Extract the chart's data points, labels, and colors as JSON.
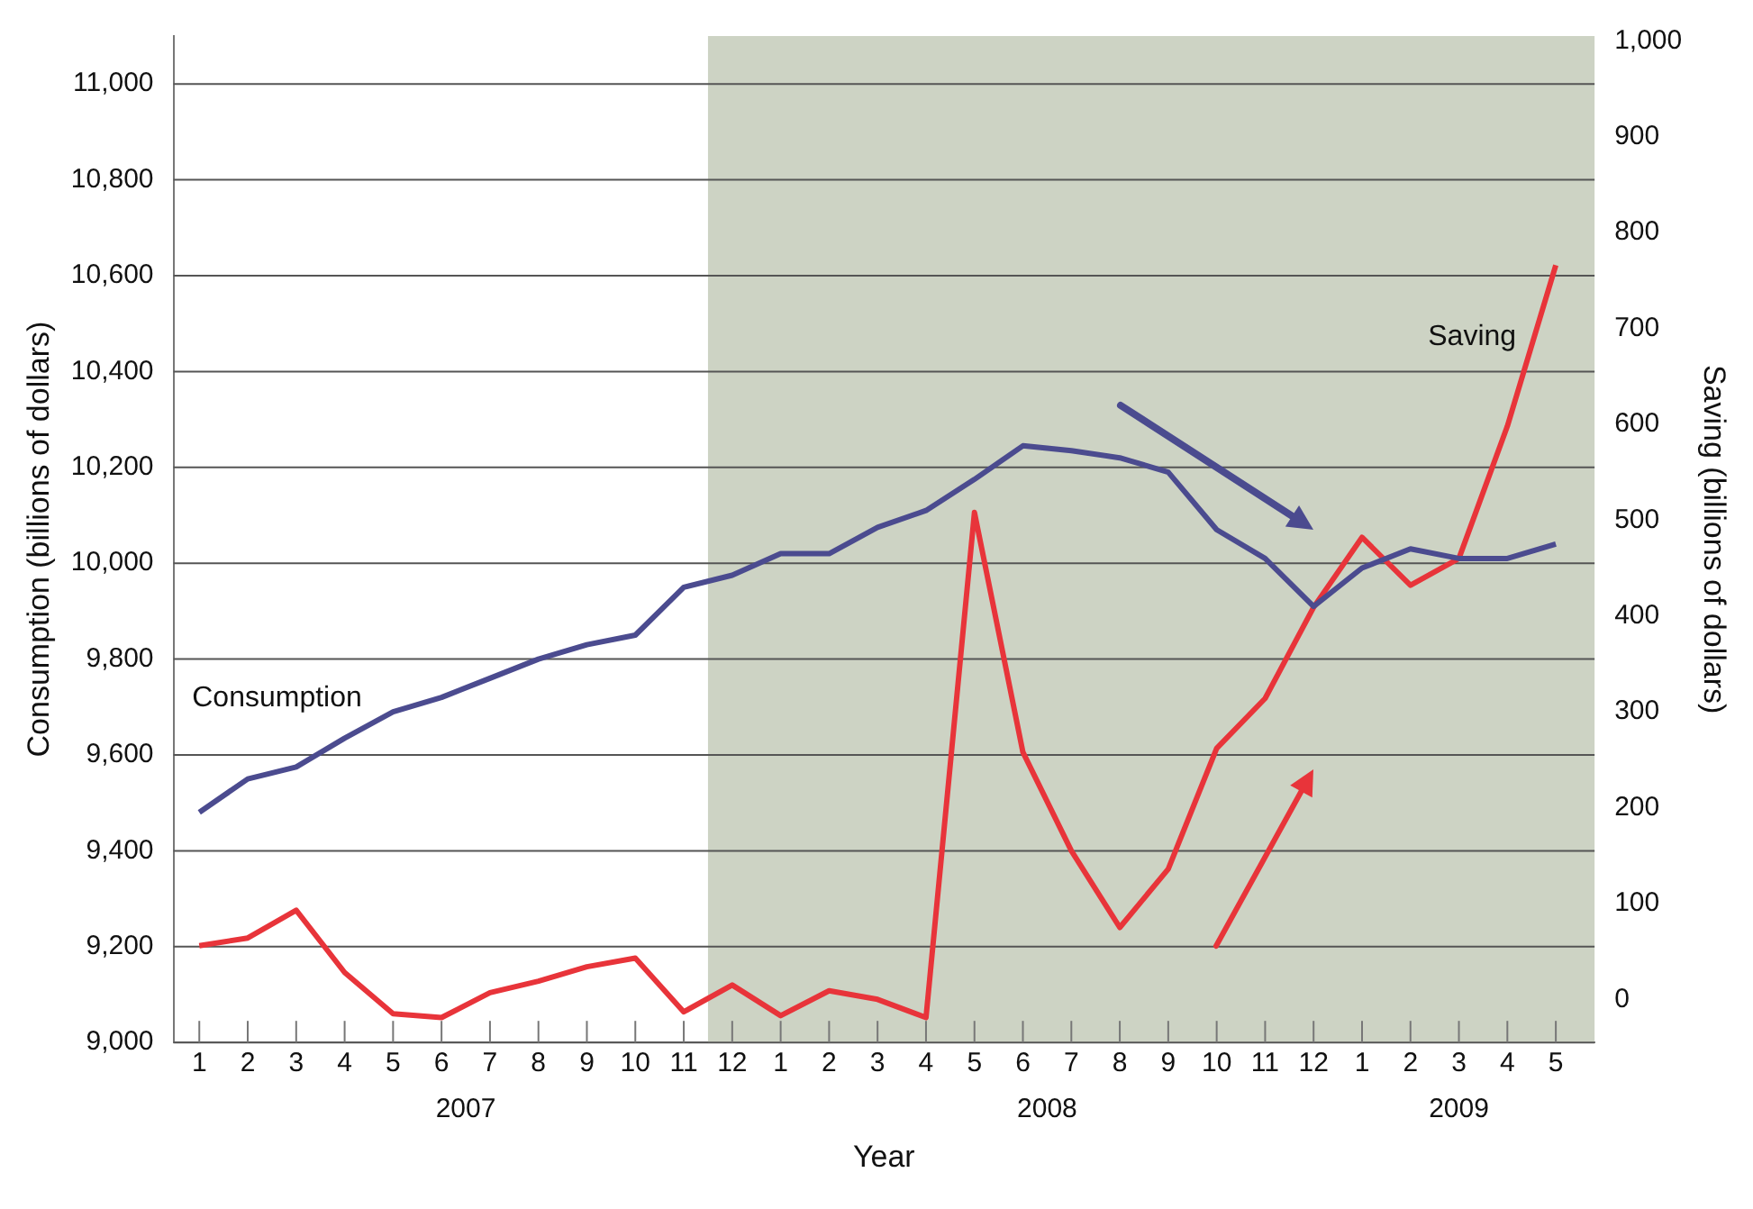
{
  "chart_data": {
    "type": "line",
    "xlabel": "Year",
    "ylabel": "Consumption (billions of dollars)",
    "y2label": "Saving (billions of dollars)",
    "x": [
      "2007-01",
      "2007-02",
      "2007-03",
      "2007-04",
      "2007-05",
      "2007-06",
      "2007-07",
      "2007-08",
      "2007-09",
      "2007-10",
      "2007-11",
      "2007-12",
      "2008-01",
      "2008-02",
      "2008-03",
      "2008-04",
      "2008-05",
      "2008-06",
      "2008-07",
      "2008-08",
      "2008-09",
      "2008-10",
      "2008-11",
      "2008-12",
      "2009-01",
      "2009-02",
      "2009-03",
      "2009-04",
      "2009-05"
    ],
    "series": [
      {
        "name": "Consumption",
        "color": "#4b4b8f",
        "values": [
          9480,
          9550,
          9575,
          9635,
          9690,
          9720,
          9760,
          9800,
          9830,
          9850,
          9950,
          9975,
          10020,
          10020,
          10075,
          10110,
          10175,
          10245,
          10235,
          10220,
          10190,
          10070,
          10010,
          9910,
          9990,
          10030,
          10010,
          10010,
          10040
        ]
      },
      {
        "name": "Saving",
        "color": "#e8343a",
        "axis": "y2",
        "values": [
          56,
          64,
          93,
          28,
          -15,
          -19,
          7,
          19,
          34,
          43,
          -13,
          15,
          -17,
          9,
          0,
          -19,
          508,
          258,
          155,
          75,
          136,
          262,
          314,
          409,
          482,
          432,
          460,
          598,
          766
        ]
      }
    ],
    "xlim": [
      "2006-12-15",
      "2009-05-25"
    ],
    "xticks": [
      {
        "value": "2007-01",
        "label": "1"
      },
      {
        "value": "2007-02",
        "label": "2"
      },
      {
        "value": "2007-03",
        "label": "3"
      },
      {
        "value": "2007-04",
        "label": "4"
      },
      {
        "value": "2007-05",
        "label": "5"
      },
      {
        "value": "2007-06",
        "label": "6"
      },
      {
        "value": "2007-07",
        "label": "7"
      },
      {
        "value": "2007-08",
        "label": "8"
      },
      {
        "value": "2007-09",
        "label": "9"
      },
      {
        "value": "2007-10",
        "label": "10"
      },
      {
        "value": "2007-11",
        "label": "11"
      },
      {
        "value": "2007-12",
        "label": "12"
      },
      {
        "value": "2008-01",
        "label": "1"
      },
      {
        "value": "2008-02",
        "label": "2"
      },
      {
        "value": "2008-03",
        "label": "3"
      },
      {
        "value": "2008-04",
        "label": "4"
      },
      {
        "value": "2008-05",
        "label": "5"
      },
      {
        "value": "2008-06",
        "label": "6"
      },
      {
        "value": "2008-07",
        "label": "7"
      },
      {
        "value": "2008-08",
        "label": "8"
      },
      {
        "value": "2008-09",
        "label": "9"
      },
      {
        "value": "2008-10",
        "label": "10"
      },
      {
        "value": "2008-11",
        "label": "11"
      },
      {
        "value": "2008-12",
        "label": "12"
      },
      {
        "value": "2009-01",
        "label": "1"
      },
      {
        "value": "2009-02",
        "label": "2"
      },
      {
        "value": "2009-03",
        "label": "3"
      },
      {
        "value": "2009-04",
        "label": "4"
      },
      {
        "value": "2009-05",
        "label": "5"
      }
    ],
    "ylim": [
      9000,
      11100
    ],
    "yticks": [
      {
        "value": 9000,
        "label": "9,000"
      },
      {
        "value": 9200,
        "label": "9,200"
      },
      {
        "value": 9400,
        "label": "9,400"
      },
      {
        "value": 9600,
        "label": "9,600"
      },
      {
        "value": 9800,
        "label": "9,800"
      },
      {
        "value": 10000,
        "label": "10,000"
      },
      {
        "value": 10200,
        "label": "10,200"
      },
      {
        "value": 10400,
        "label": "10,400"
      },
      {
        "value": 10600,
        "label": "10,600"
      },
      {
        "value": 10800,
        "label": "10,800"
      },
      {
        "value": 11000,
        "label": "11,000"
      }
    ],
    "y2lim": [
      -45,
      1005
    ],
    "y2ticks": [
      0,
      100,
      200,
      300,
      400,
      500,
      600,
      700,
      800,
      900,
      {
        "value": 1000,
        "label": "1,000"
      }
    ],
    "bands": [
      {
        "axis": "x",
        "from": "2007-11-16",
        "to": "2009-05-25",
        "color": "#cdd3c4"
      }
    ],
    "annotations": [
      "2007",
      "2008",
      "2009"
    ],
    "grid": "y",
    "legend": false,
    "marker": "none",
    "line_style": "solid"
  }
}
